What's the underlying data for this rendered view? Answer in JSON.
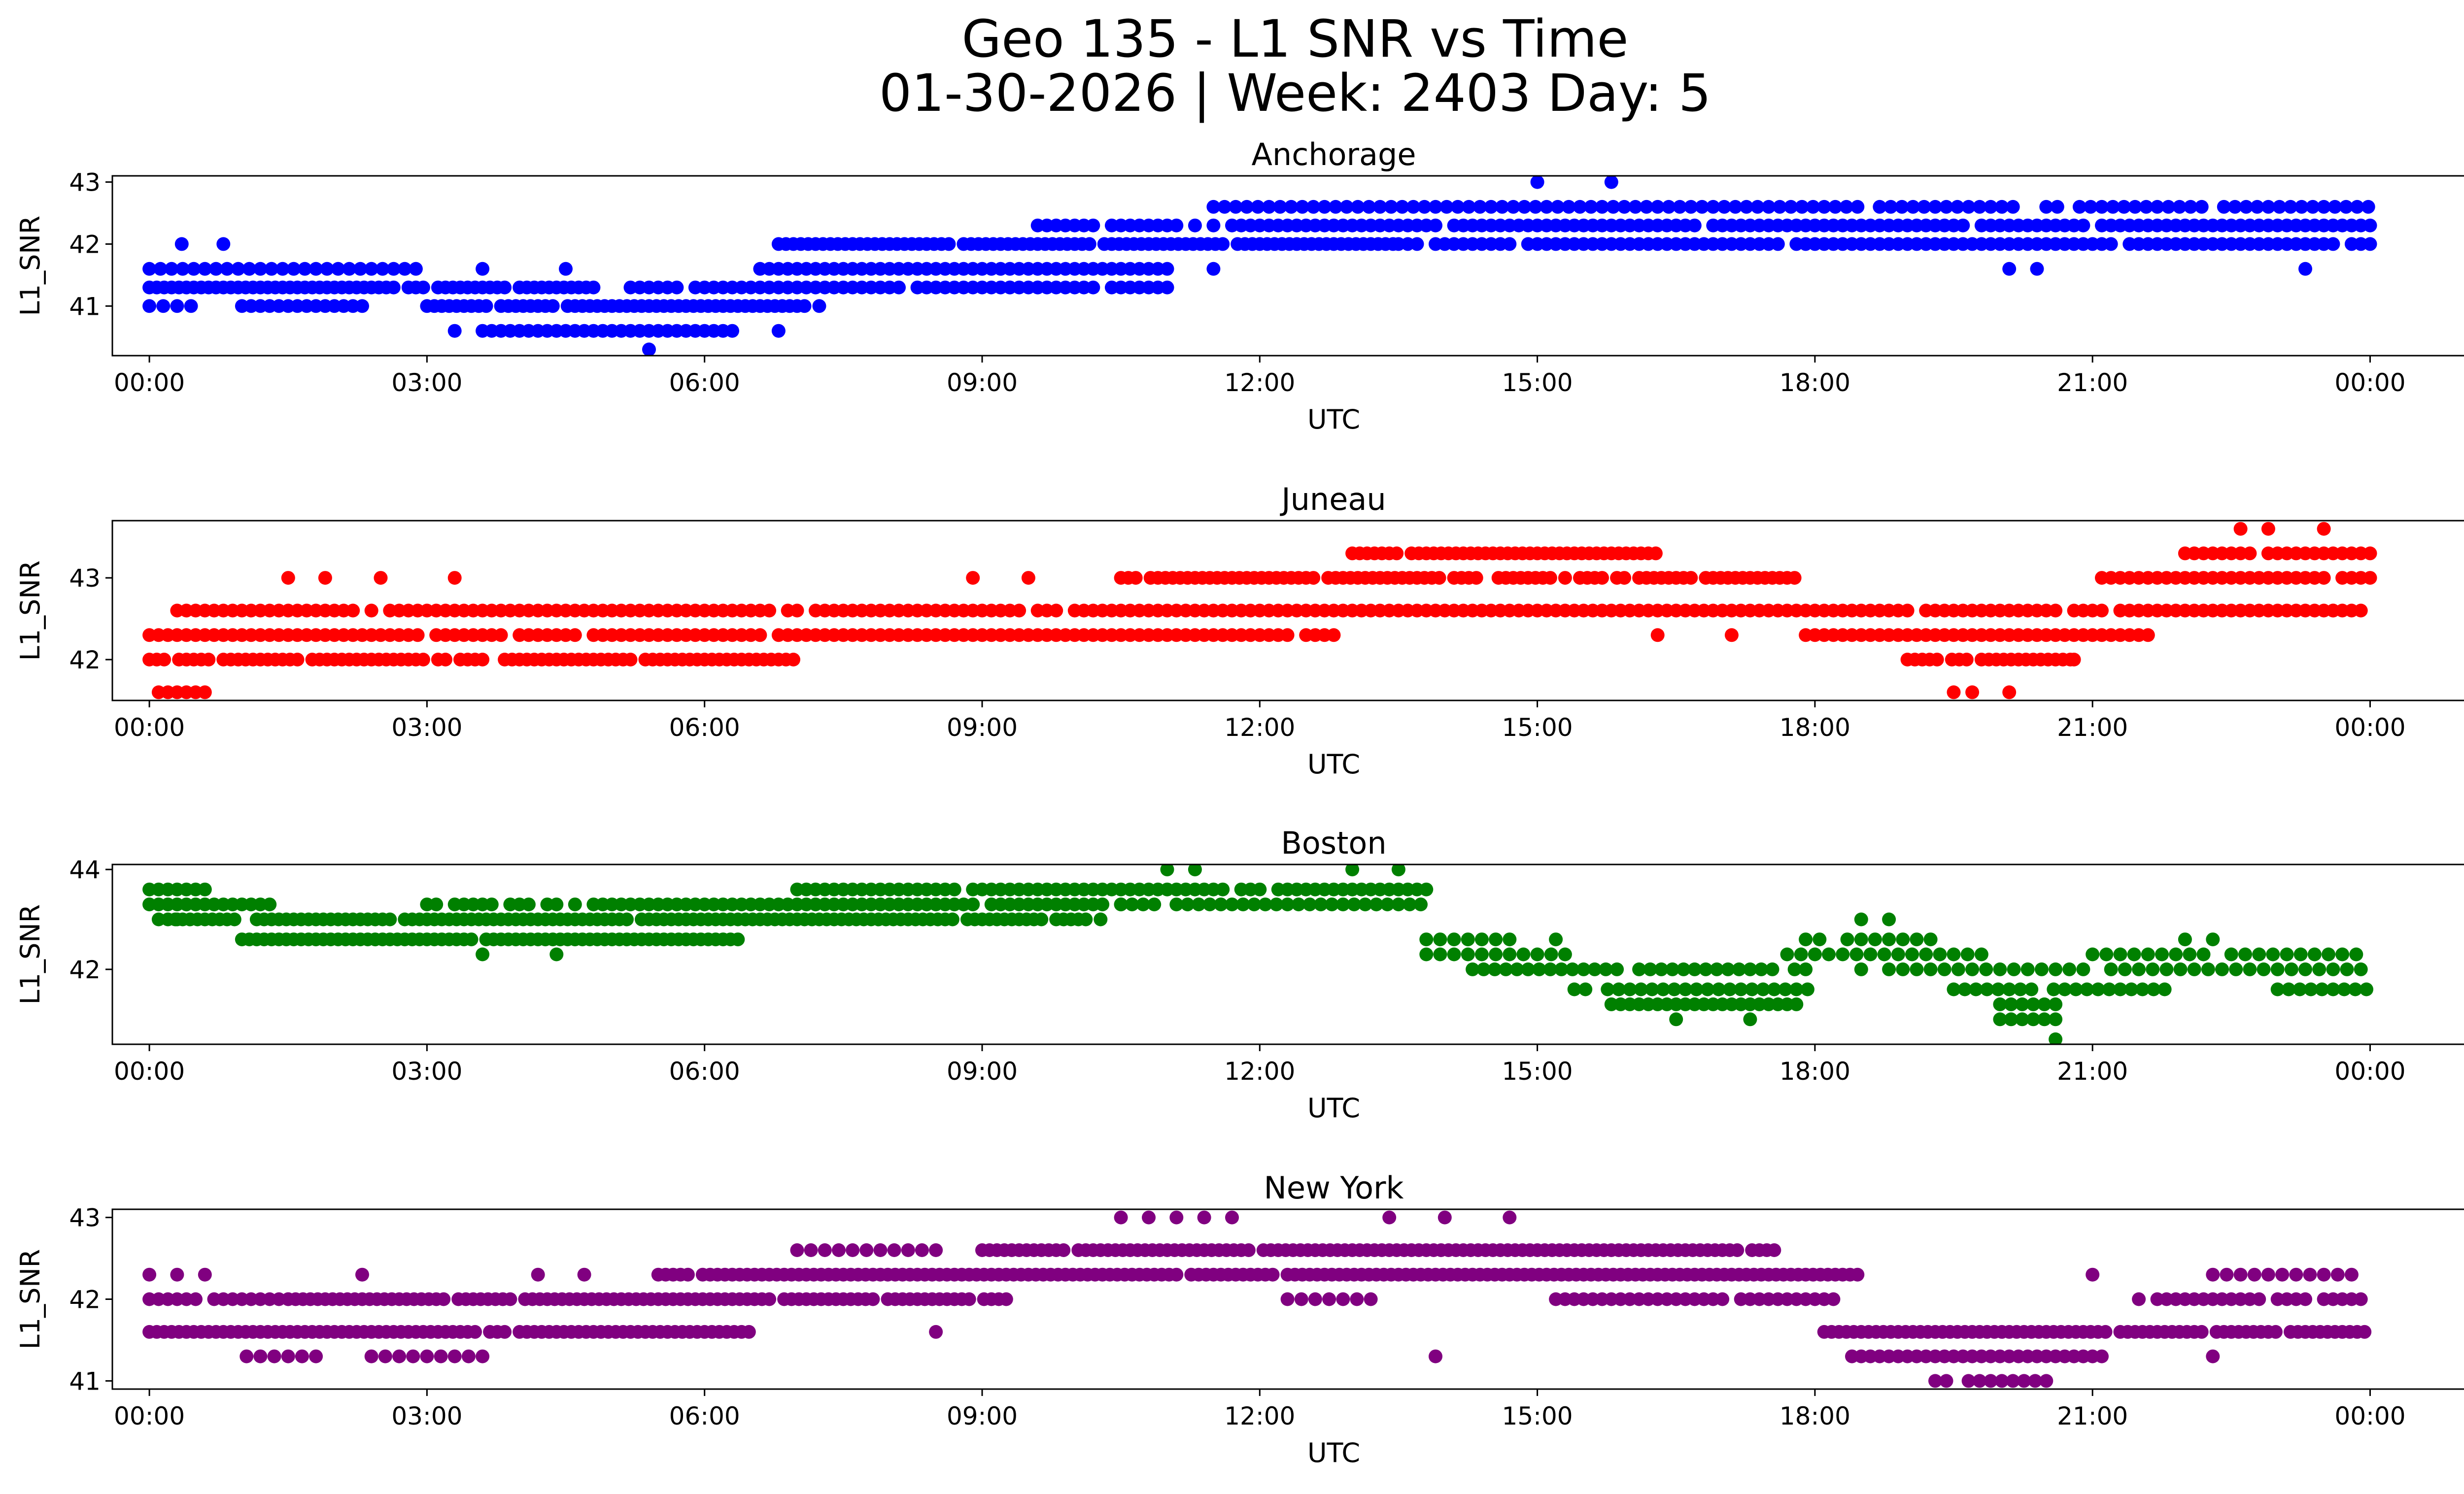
{
  "title_line1": "Geo 135 - L1 SNR vs Time",
  "title_line2": "01-30-2026 | Week: 2403 Day: 5",
  "chart_data": [
    {
      "type": "scatter",
      "title": "Anchorage",
      "xlabel": "UTC",
      "ylabel": "L1_SNR",
      "color": "#0000ff",
      "xlim": [
        -0.4,
        26.0
      ],
      "ylim": [
        40.2,
        43.1
      ],
      "yticks": [
        41,
        42,
        43
      ],
      "xticks": [
        0,
        3,
        6,
        9,
        12,
        15,
        18,
        21,
        24
      ],
      "xtick_labels": [
        "00:00",
        "03:00",
        "06:00",
        "09:00",
        "12:00",
        "15:00",
        "18:00",
        "21:00",
        "00:00"
      ],
      "segments": [
        [
          0.0,
          2.9,
          41.6,
          0.12
        ],
        [
          0.0,
          4.9,
          41.3,
          0.08
        ],
        [
          0.0,
          0.45,
          41.0,
          0.15
        ],
        [
          1.0,
          2.3,
          41.0,
          0.1
        ],
        [
          3.0,
          7.3,
          41.0,
          0.08
        ],
        [
          3.6,
          6.3,
          40.6,
          0.1
        ],
        [
          5.2,
          11.0,
          41.3,
          0.1
        ],
        [
          6.6,
          11.0,
          41.6,
          0.1
        ],
        [
          6.8,
          13.5,
          42.0,
          0.08
        ],
        [
          13.5,
          24.0,
          42.0,
          0.1
        ],
        [
          9.6,
          24.0,
          42.3,
          0.1
        ],
        [
          11.5,
          24.0,
          42.6,
          0.12
        ]
      ],
      "extra_points": [
        [
          0.35,
          42.0
        ],
        [
          0.8,
          42.0
        ],
        [
          3.6,
          41.6
        ],
        [
          4.5,
          41.6
        ],
        [
          3.3,
          40.6
        ],
        [
          5.4,
          40.3
        ],
        [
          6.8,
          40.6
        ],
        [
          9.3,
          41.3
        ],
        [
          9.6,
          41.3
        ],
        [
          11.5,
          41.6
        ],
        [
          15.0,
          43.0
        ],
        [
          15.8,
          43.0
        ],
        [
          20.1,
          41.6
        ],
        [
          20.4,
          41.6
        ],
        [
          23.3,
          41.6
        ]
      ]
    },
    {
      "type": "scatter",
      "title": "Juneau",
      "xlabel": "UTC",
      "ylabel": "L1_SNR",
      "color": "#ff0000",
      "xlim": [
        -0.4,
        26.0
      ],
      "ylim": [
        41.5,
        43.7
      ],
      "yticks": [
        42,
        43
      ],
      "xticks": [
        0,
        3,
        6,
        9,
        12,
        15,
        18,
        21,
        24
      ],
      "xtick_labels": [
        "00:00",
        "03:00",
        "06:00",
        "09:00",
        "12:00",
        "15:00",
        "18:00",
        "21:00",
        "00:00"
      ],
      "segments": [
        [
          0.1,
          0.6,
          41.6,
          0.1
        ],
        [
          0.0,
          7.0,
          42.0,
          0.08
        ],
        [
          0.0,
          12.8,
          42.3,
          0.1
        ],
        [
          0.3,
          24.0,
          42.6,
          0.1
        ],
        [
          10.5,
          17.8,
          43.0,
          0.08
        ],
        [
          13.0,
          16.3,
          43.3,
          0.08
        ],
        [
          17.9,
          21.6,
          42.3,
          0.1
        ],
        [
          19.0,
          20.8,
          42.0,
          0.08
        ],
        [
          21.0,
          24.0,
          43.0,
          0.1
        ],
        [
          22.0,
          24.0,
          43.3,
          0.1
        ]
      ],
      "extra_points": [
        [
          1.5,
          43.0
        ],
        [
          1.9,
          43.0
        ],
        [
          2.5,
          43.0
        ],
        [
          3.3,
          43.0
        ],
        [
          8.9,
          43.0
        ],
        [
          9.5,
          43.0
        ],
        [
          16.3,
          42.3
        ],
        [
          17.1,
          42.3
        ],
        [
          19.5,
          41.6
        ],
        [
          19.7,
          41.6
        ],
        [
          20.1,
          41.6
        ],
        [
          22.6,
          43.6
        ],
        [
          22.9,
          43.6
        ],
        [
          23.5,
          43.6
        ],
        [
          23.6,
          42.6
        ],
        [
          20.8,
          42.0
        ]
      ]
    },
    {
      "type": "scatter",
      "title": "Boston",
      "xlabel": "UTC",
      "ylabel": "L1_SNR",
      "color": "#008000",
      "xlim": [
        -0.4,
        26.0
      ],
      "ylim": [
        40.5,
        44.1
      ],
      "yticks": [
        42,
        44
      ],
      "xticks": [
        0,
        3,
        6,
        9,
        12,
        15,
        18,
        21,
        24
      ],
      "xtick_labels": [
        "00:00",
        "03:00",
        "06:00",
        "09:00",
        "12:00",
        "15:00",
        "18:00",
        "21:00",
        "00:00"
      ],
      "segments": [
        [
          0.0,
          0.6,
          43.6,
          0.1
        ],
        [
          0.0,
          1.3,
          43.3,
          0.1
        ],
        [
          0.2,
          10.3,
          43.0,
          0.08
        ],
        [
          1.0,
          6.4,
          42.6,
          0.08
        ],
        [
          3.0,
          10.5,
          43.3,
          0.1
        ],
        [
          7.0,
          13.8,
          43.6,
          0.1
        ],
        [
          10.5,
          13.8,
          43.3,
          0.12
        ],
        [
          13.8,
          14.8,
          42.6,
          0.15
        ],
        [
          13.8,
          15.4,
          42.3,
          0.15
        ],
        [
          14.3,
          17.9,
          42.0,
          0.12
        ],
        [
          15.4,
          18.0,
          41.6,
          0.12
        ],
        [
          15.8,
          17.8,
          41.3,
          0.1
        ],
        [
          17.9,
          19.3,
          42.6,
          0.15
        ],
        [
          17.7,
          19.8,
          42.3,
          0.15
        ],
        [
          18.5,
          24.0,
          42.0,
          0.15
        ],
        [
          19.5,
          21.8,
          41.6,
          0.12
        ],
        [
          20.0,
          20.7,
          41.3,
          0.12
        ],
        [
          20.0,
          20.6,
          41.0,
          0.12
        ],
        [
          21.0,
          23.9,
          42.3,
          0.15
        ],
        [
          23.0,
          24.0,
          41.6,
          0.12
        ]
      ],
      "extra_points": [
        [
          0.1,
          43.0
        ],
        [
          0.3,
          43.0
        ],
        [
          3.6,
          42.3
        ],
        [
          4.4,
          42.3
        ],
        [
          11.0,
          44.0
        ],
        [
          11.3,
          44.0
        ],
        [
          13.0,
          44.0
        ],
        [
          13.5,
          44.0
        ],
        [
          16.5,
          41.0
        ],
        [
          17.3,
          41.0
        ],
        [
          18.5,
          43.0
        ],
        [
          18.8,
          43.0
        ],
        [
          20.6,
          40.6
        ],
        [
          22.0,
          42.6
        ],
        [
          22.3,
          42.6
        ],
        [
          15.2,
          42.6
        ]
      ]
    },
    {
      "type": "scatter",
      "title": "New York",
      "xlabel": "UTC",
      "ylabel": "L1_SNR",
      "color": "#800080",
      "xlim": [
        -0.4,
        26.0
      ],
      "ylim": [
        40.9,
        43.1
      ],
      "yticks": [
        41,
        42,
        43
      ],
      "xticks": [
        0,
        3,
        6,
        9,
        12,
        15,
        18,
        21,
        24
      ],
      "xtick_labels": [
        "00:00",
        "03:00",
        "06:00",
        "09:00",
        "12:00",
        "15:00",
        "18:00",
        "21:00",
        "00:00"
      ],
      "segments": [
        [
          0.0,
          1.5,
          42.0,
          0.1
        ],
        [
          1.5,
          9.3,
          42.0,
          0.08
        ],
        [
          0.0,
          6.5,
          41.6,
          0.08
        ],
        [
          0.9,
          1.8,
          41.3,
          0.15
        ],
        [
          2.4,
          3.8,
          41.3,
          0.15
        ],
        [
          5.5,
          18.5,
          42.3,
          0.08
        ],
        [
          9.0,
          17.6,
          42.6,
          0.08
        ],
        [
          7.0,
          8.6,
          42.6,
          0.15
        ],
        [
          12.3,
          13.2,
          42.0,
          0.15
        ],
        [
          15.2,
          18.2,
          42.0,
          0.1
        ],
        [
          18.1,
          24.0,
          41.6,
          0.08
        ],
        [
          18.4,
          21.1,
          41.3,
          0.1
        ],
        [
          19.3,
          20.6,
          41.0,
          0.12
        ],
        [
          21.5,
          24.0,
          42.0,
          0.1
        ],
        [
          22.3,
          23.9,
          42.3,
          0.15
        ]
      ],
      "extra_points": [
        [
          0.0,
          42.3
        ],
        [
          0.3,
          42.3
        ],
        [
          0.6,
          42.3
        ],
        [
          2.3,
          42.3
        ],
        [
          4.2,
          42.3
        ],
        [
          4.7,
          42.3
        ],
        [
          8.5,
          41.6
        ],
        [
          13.9,
          41.3
        ],
        [
          21.0,
          42.3
        ],
        [
          22.3,
          41.3
        ],
        [
          10.5,
          43.0
        ],
        [
          10.8,
          43.0
        ],
        [
          11.1,
          43.0
        ],
        [
          11.4,
          43.0
        ],
        [
          11.7,
          43.0
        ],
        [
          13.4,
          43.0
        ],
        [
          14.0,
          43.0
        ],
        [
          14.7,
          43.0
        ]
      ]
    }
  ]
}
